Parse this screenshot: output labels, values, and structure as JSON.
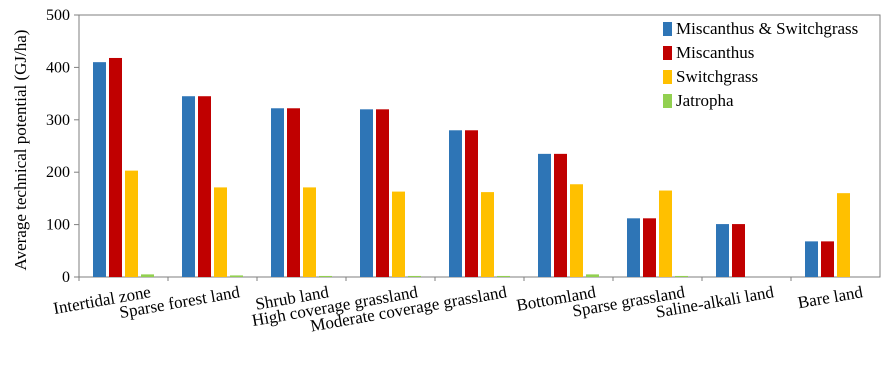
{
  "chart_data": {
    "type": "bar",
    "ylabel": "Average technical potential (GJ/ha)",
    "xlabel": "",
    "ylim": [
      0,
      500
    ],
    "yticks": [
      0,
      100,
      200,
      300,
      400,
      500
    ],
    "grid": false,
    "legend_position": "top-right",
    "categories": [
      "Intertidal zone",
      "Sparse forest land",
      "Shrub land",
      "High coverage grassland",
      "Moderate coverage grassland",
      "Bottomland",
      "Sparse grassland",
      "Saline-alkali land",
      "Bare land"
    ],
    "series": [
      {
        "name": "Miscanthus & Switchgrass",
        "color": "#2e75b6",
        "values": [
          410,
          345,
          322,
          320,
          280,
          235,
          112,
          101,
          68
        ]
      },
      {
        "name": "Miscanthus",
        "color": "#c00000",
        "values": [
          418,
          345,
          322,
          320,
          280,
          235,
          112,
          101,
          68
        ]
      },
      {
        "name": "Switchgrass",
        "color": "#ffc000",
        "values": [
          203,
          171,
          171,
          163,
          162,
          177,
          165,
          null,
          160
        ]
      },
      {
        "name": "Jatropha",
        "color": "#92d050",
        "values": [
          5,
          3,
          2,
          2,
          2,
          5,
          2,
          null,
          null
        ]
      }
    ]
  }
}
